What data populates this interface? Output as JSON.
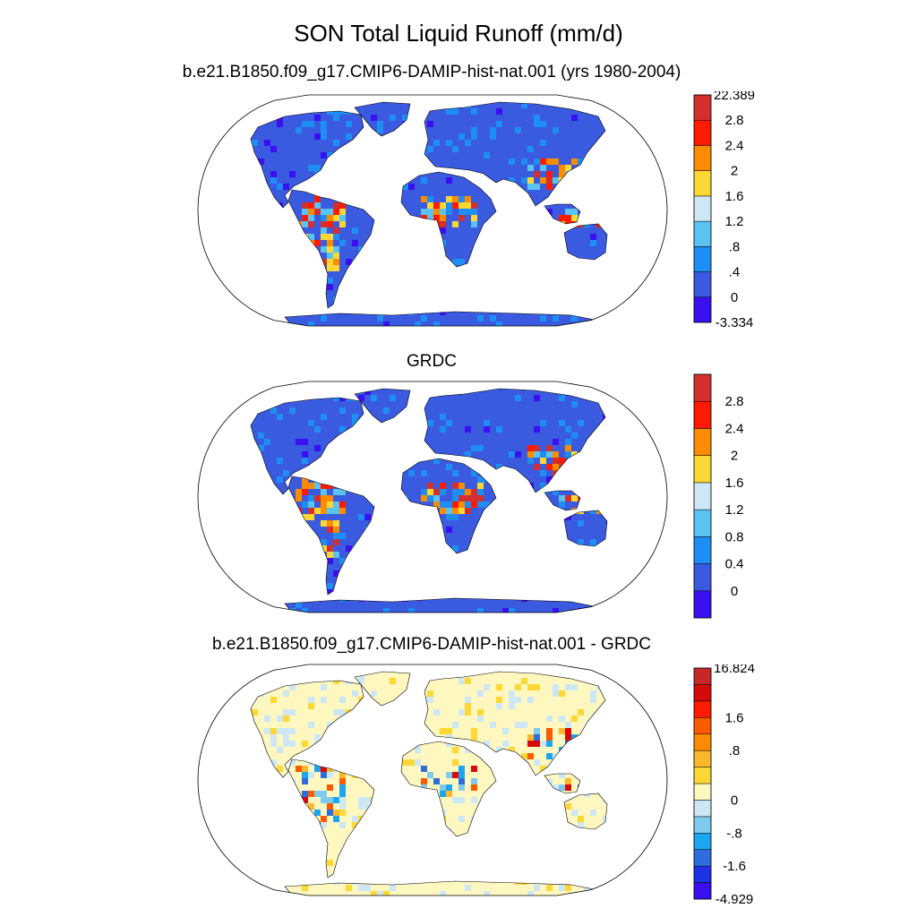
{
  "title": "SON Total Liquid Runoff (mm/d)",
  "panels": [
    {
      "subtitle": "b.e21.B1850.f09_g17.CMIP6-DAMIP-hist-nat.001 (yrs 1980-2004)",
      "colorbar": {
        "colors": [
          "#3a10f0",
          "#3a5ae0",
          "#1e8ef5",
          "#5bc3f2",
          "#cde8f4",
          "#fdd835",
          "#fb8c00",
          "#ff1a00",
          "#d32f2f"
        ],
        "labels": [
          "-3.334",
          "0",
          ".4",
          ".8",
          "1.2",
          "1.6",
          "2",
          "2.4",
          "2.8",
          "22.389"
        ]
      }
    },
    {
      "subtitle": "GRDC",
      "colorbar": {
        "colors": [
          "#3a10f0",
          "#3a5ae0",
          "#1e8ef5",
          "#5bc3f2",
          "#cde8f4",
          "#fdd835",
          "#fb8c00",
          "#ff1a00",
          "#d32f2f"
        ],
        "labels": [
          "",
          "0",
          "0.4",
          "0.8",
          "1.2",
          "1.6",
          "2",
          "2.4",
          "2.8",
          ""
        ]
      }
    },
    {
      "subtitle": "b.e21.B1850.f09_g17.CMIP6-DAMIP-hist-nat.001 - GRDC",
      "colorbar": {
        "colors": [
          "#3a10f0",
          "#1f33e6",
          "#2f6ddc",
          "#1ba6ef",
          "#7fcbee",
          "#cde8f4",
          "#fef7c0",
          "#fdd835",
          "#fbb82c",
          "#fb8c00",
          "#fa5a00",
          "#ff1a00",
          "#d70a0a",
          "#c62828"
        ],
        "labels": [
          "-4.929",
          "",
          "-1.6",
          "",
          "-.8",
          "",
          "0",
          "",
          "",
          ".8",
          "",
          "1.6",
          "",
          "",
          "16.824"
        ],
        "label_positions": [
          0,
          2,
          4,
          6,
          9,
          11,
          14
        ]
      }
    }
  ]
}
